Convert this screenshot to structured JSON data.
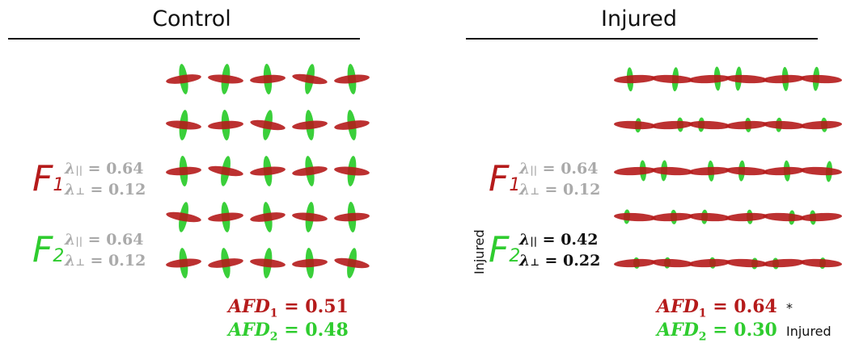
{
  "panels": {
    "control": {
      "title": "Control",
      "f1": {
        "letter": "F",
        "sub": "1",
        "lam_par_sym": "λ",
        "lam_par_sub": "||",
        "lam_par_val": " = 0.64",
        "lam_perp_sym": "λ",
        "lam_perp_sub": "⊥",
        "lam_perp_val": " = 0.12"
      },
      "f2": {
        "letter": "F",
        "sub": "2",
        "lam_par_sym": "λ",
        "lam_par_sub": "||",
        "lam_par_val": " = 0.64",
        "lam_perp_sym": "λ",
        "lam_perp_sub": "⊥",
        "lam_perp_val": " = 0.12"
      },
      "afd1": {
        "name": "AFD",
        "sub": "1",
        "val": " = 0.51"
      },
      "afd2": {
        "name": "AFD",
        "sub": "2",
        "val": " = 0.48"
      }
    },
    "injured": {
      "title": "Injured",
      "f1": {
        "letter": "F",
        "sub": "1",
        "lam_par_sym": "λ",
        "lam_par_sub": "||",
        "lam_par_val": " = 0.64",
        "lam_perp_sym": "λ",
        "lam_perp_sub": "⊥",
        "lam_perp_val": " = 0.12"
      },
      "f2": {
        "letter": "F",
        "sub": "2",
        "lam_par_sym": "λ",
        "lam_par_sub": "||",
        "lam_par_val": " = 0.42",
        "lam_perp_sym": "λ",
        "lam_perp_sub": "⊥",
        "lam_perp_val": " = 0.22"
      },
      "f2_side_label": "Injured",
      "afd1": {
        "name": "AFD",
        "sub": "1",
        "val": " = 0.64",
        "mark": "*"
      },
      "afd2": {
        "name": "AFD",
        "sub": "2",
        "val": " = 0.30",
        "note": "Injured"
      }
    }
  },
  "colors": {
    "fiber1": "#b51b1b",
    "fiber2": "#2fcc2f",
    "healthy_text": "#aaaaaa",
    "changed_text": "#111111"
  }
}
